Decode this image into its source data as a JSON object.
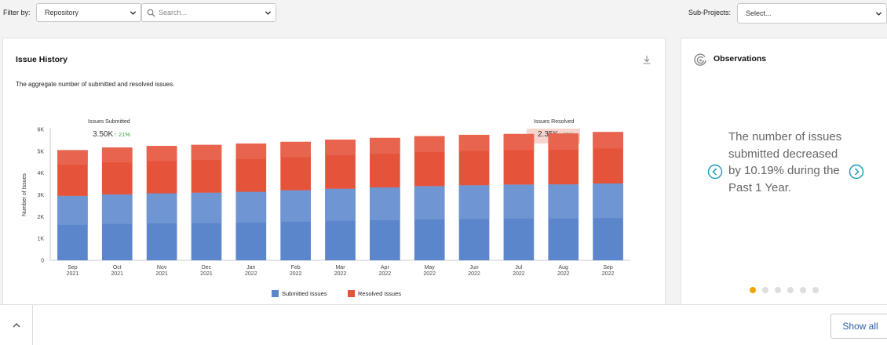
{
  "filter": {
    "label": "Filter by:",
    "repository_value": "Repository",
    "search_placeholder": "Search...",
    "subprojects_label": "Sub-Projects:",
    "subprojects_value": "Select..."
  },
  "issue_history": {
    "title": "Issue History",
    "subtitle": "The aggregate number of submitted and resolved issues.",
    "submitted_stat_label": "Issues Submitted",
    "submitted_stat_value": "3.50K",
    "submitted_stat_change": "21%",
    "resolved_stat_label": "Issues Resolved",
    "resolved_stat_value": "2.35K",
    "resolved_stat_change": "15%"
  },
  "chart_data": {
    "type": "bar",
    "stacked": true,
    "categories": [
      "Sep 2021",
      "Oct 2021",
      "Nov 2021",
      "Dec 2021",
      "Jan 2022",
      "Feb 2022",
      "Mar 2022",
      "Apr 2022",
      "May 2022",
      "Jun 2022",
      "Jul 2022",
      "Aug 2022",
      "Sep 2022"
    ],
    "tick_labels": [
      [
        "Sep",
        "2021"
      ],
      [
        "Oct",
        "2021"
      ],
      [
        "Nov",
        "2021"
      ],
      [
        "Dec",
        "2021"
      ],
      [
        "Jan",
        "2022"
      ],
      [
        "Feb",
        "2022"
      ],
      [
        "Mar",
        "2022"
      ],
      [
        "Apr",
        "2022"
      ],
      [
        "May",
        "2022"
      ],
      [
        "Jun",
        "2022"
      ],
      [
        "Jul",
        "2022"
      ],
      [
        "Aug",
        "2022"
      ],
      [
        "Sep",
        "2022"
      ]
    ],
    "series": [
      {
        "name": "Submitted Issues",
        "color": "#5b86cc",
        "values": [
          2950,
          3020,
          3070,
          3100,
          3140,
          3210,
          3280,
          3340,
          3400,
          3440,
          3470,
          3480,
          3520
        ]
      },
      {
        "name": "Resolved Issues",
        "color": "#e5533a",
        "values": [
          2100,
          2150,
          2170,
          2190,
          2210,
          2220,
          2250,
          2270,
          2290,
          2310,
          2320,
          2330,
          2360
        ]
      }
    ],
    "ylabel": "Number of Issues",
    "ylim": [
      0,
      6000
    ],
    "yticks": [
      "0",
      "1K",
      "2K",
      "3K",
      "4K",
      "5K",
      "6K"
    ],
    "ytick_values": [
      0,
      1000,
      2000,
      3000,
      4000,
      5000,
      6000
    ],
    "legend_position": "bottom-center",
    "grid": false
  },
  "observations": {
    "title": "Observations",
    "text": "The number of issues submitted decreased by 10.19% during the Past 1 Year.",
    "page_count": 6,
    "active_page": 1
  },
  "bottom": {
    "show_all_label": "Show all"
  }
}
